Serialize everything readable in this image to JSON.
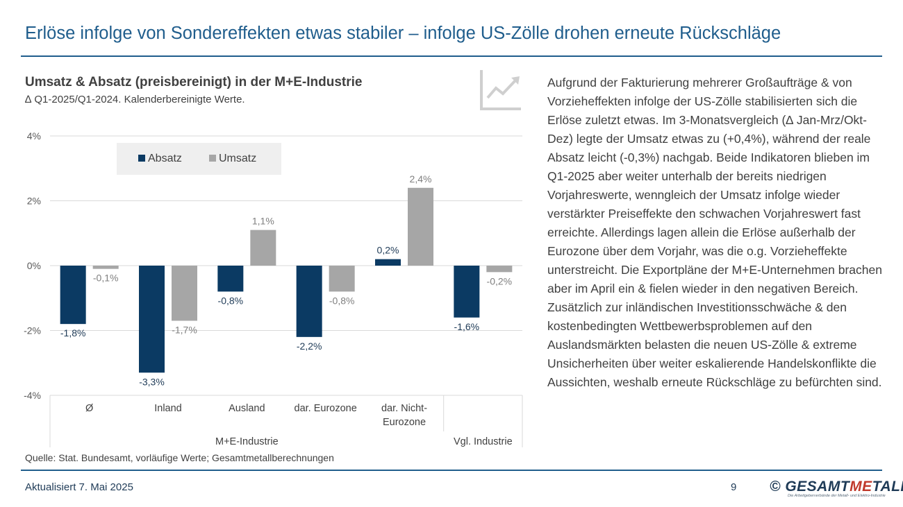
{
  "page": {
    "title": "Erlöse infolge von Sondereffekten etwas stabiler – infolge US-Zölle drohen erneute Rückschläge",
    "source": "Quelle: Stat. Bundesamt, vorläufige Werte; Gesamtmetallberechnungen",
    "body_text": "Aufgrund der Fakturierung mehrerer Großaufträge & von Vorzieheffekten infolge der US-Zölle stabilisierten sich die Erlöse zuletzt etwas. Im 3-Monatsvergleich (∆ Jan-Mrz/Okt-Dez) legte der Umsatz etwas zu (+0,4%), während der reale Absatz leicht (-0,3%) nachgab. Beide Indikatoren blieben im Q1-2025 aber weiter unterhalb der bereits niedrigen Vorjahreswerte, wenngleich der Umsatz infolge wieder verstärkter Preiseffekte den schwachen Vorjahreswert fast erreichte. Allerdings lagen allein die Erlöse außerhalb der Eurozone über dem Vorjahr, was die o.g. Vorzieheffekte unterstreicht. Die Exportpläne der M+E-Unternehmen brachen aber im April ein & fielen wieder in den negativen Bereich. Zusätzlich zur inländischen Investitionsschwäche & den kostenbedingten Wettbewerbsproblemen auf den Auslandsmärkten belasten die neuen US-Zölle & extreme Unsicherheiten über weiter eskalierende Handelskonflikte die Aussichten, weshalb erneute Rückschläge zu befürchten sind.",
    "footer_date": "Aktualisiert 7. Mai 2025",
    "page_number": "9",
    "logo": {
      "symbol": "©",
      "part1": "GESAMT",
      "part2": "ME",
      "part3": "TALL",
      "tagline": "Die Arbeitgeberverbände der Metall- und Elektro-Industrie"
    },
    "icon": "line-chart-trend-icon"
  },
  "chart_data": {
    "type": "bar",
    "title": "Umsatz & Absatz (preisbereinigt) in der M+E-Industrie",
    "subtitle": "∆ Q1-2025/Q1-2024. Kalenderbereinigte Werte.",
    "categories": [
      "Ø",
      "Inland",
      "Ausland",
      "dar. Eurozone",
      "dar. Nicht-Eurozone",
      ""
    ],
    "category_lines": [
      [
        "Ø"
      ],
      [
        "Inland"
      ],
      [
        "Ausland"
      ],
      [
        "dar. Eurozone"
      ],
      [
        "dar. Nicht-",
        "Eurozone"
      ],
      [
        ""
      ]
    ],
    "groups": [
      {
        "label": "M+E-Industrie",
        "categories": [
          0,
          1,
          2,
          3,
          4
        ]
      },
      {
        "label": "Vgl. Industrie",
        "categories": [
          5
        ]
      }
    ],
    "series": [
      {
        "name": "Absatz",
        "color": "#0b3a63",
        "label_color": "#1f3b57",
        "values": [
          -1.8,
          -3.3,
          -0.8,
          -2.2,
          0.2,
          -1.6
        ],
        "labels": [
          "-1,8%",
          "-3,3%",
          "-0,8%",
          "-2,2%",
          "0,2%",
          "-1,6%"
        ]
      },
      {
        "name": "Umsatz",
        "color": "#a6a6a6",
        "label_color": "#7f7f7f",
        "values": [
          -0.1,
          -1.7,
          1.1,
          -0.8,
          2.4,
          -0.2
        ],
        "labels": [
          "-0,1%",
          "-1,7%",
          "1,1%",
          "-0,8%",
          "2,4%",
          "-0,2%"
        ]
      }
    ],
    "ylim": [
      -4,
      4
    ],
    "yticks": [
      -4,
      -2,
      0,
      2,
      4
    ],
    "ytick_labels": [
      "-4%",
      "-2%",
      "0%",
      "2%",
      "4%"
    ],
    "grid": true,
    "legend_position": "top-left"
  }
}
